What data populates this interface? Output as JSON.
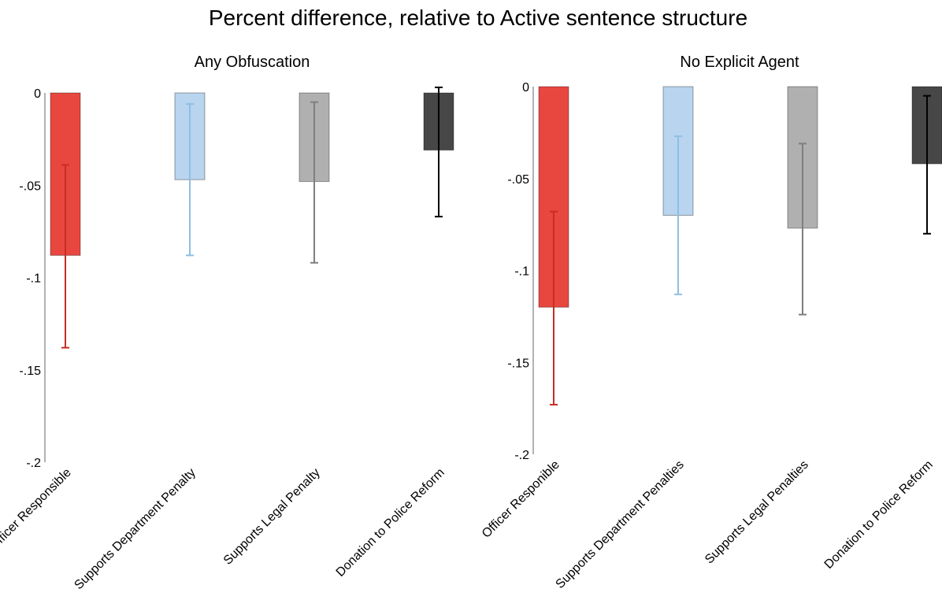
{
  "figure": {
    "title": "Percent difference, relative to Active sentence structure"
  },
  "chart_data": [
    {
      "type": "bar",
      "title": "Any Obfuscation",
      "xlabel": "",
      "ylabel": "",
      "ylim": [
        -0.2,
        0
      ],
      "yticks": [
        0,
        -0.05,
        -0.1,
        -0.15,
        -0.2
      ],
      "ytick_labels": [
        "0",
        "-.05",
        "-.1",
        "-.15",
        "-.2"
      ],
      "grid": false,
      "categories": [
        "Officer Responsible",
        "Supports Department Penalty",
        "Supports Legal Penalty",
        "Donation to Police Reform"
      ],
      "values": [
        -0.088,
        -0.047,
        -0.048,
        -0.031
      ],
      "error_low": [
        -0.138,
        -0.088,
        -0.092,
        -0.067
      ],
      "error_high": [
        -0.039,
        -0.006,
        -0.005,
        0.003
      ],
      "colors": [
        "#e8473f",
        "#b8d4ee",
        "#b0b0b0",
        "#474747"
      ],
      "error_colors": [
        "#c72d24",
        "#8ebfe3",
        "#7f7f7f",
        "#000000"
      ]
    },
    {
      "type": "bar",
      "title": "No Explicit Agent",
      "xlabel": "",
      "ylabel": "",
      "ylim": [
        -0.2,
        0
      ],
      "yticks": [
        0,
        -0.05,
        -0.1,
        -0.15,
        -0.2
      ],
      "ytick_labels": [
        "0",
        "-.05",
        "-.1",
        "-.15",
        "-.2"
      ],
      "grid": false,
      "categories": [
        "Officer Responible",
        "Supports Department Penalties",
        "Supports Legal Penalties",
        "Donation to Police Reform"
      ],
      "values": [
        -0.12,
        -0.07,
        -0.077,
        -0.042
      ],
      "error_low": [
        -0.173,
        -0.113,
        -0.124,
        -0.08
      ],
      "error_high": [
        -0.068,
        -0.027,
        -0.031,
        -0.005
      ],
      "colors": [
        "#e8473f",
        "#b8d4ee",
        "#b0b0b0",
        "#474747"
      ],
      "error_colors": [
        "#c72d24",
        "#8ebfe3",
        "#7f7f7f",
        "#000000"
      ]
    }
  ]
}
